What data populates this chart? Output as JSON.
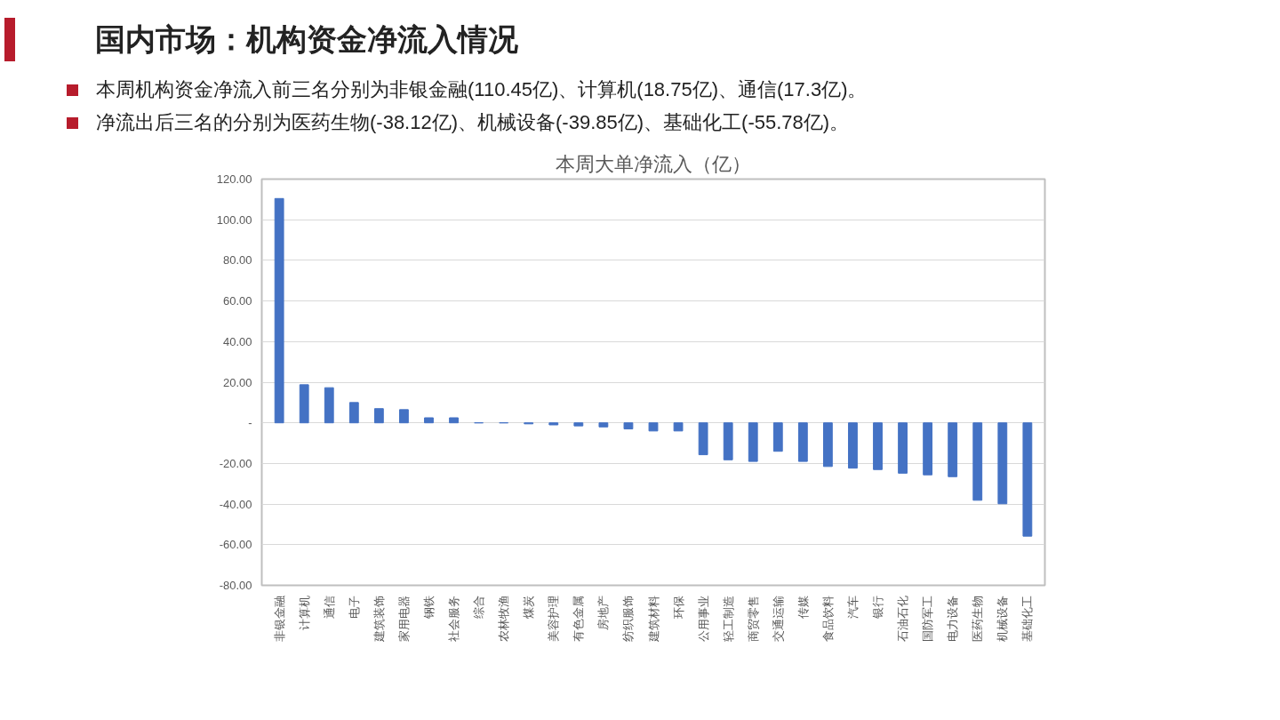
{
  "chart_data": {
    "type": "bar",
    "title": "国内市场：机构资金净流入情况",
    "subtitle": "本周大单净流入（亿）",
    "annotations": [
      "本周机构资金净流入前三名分别为非银金融(110.45亿)、计算机(18.75亿)、通信(17.3亿)。",
      "净流出后三名的分别为医药生物(-38.12亿)、机械设备(-39.85亿)、基础化工(-55.78亿)。"
    ],
    "categories": [
      "非银金融",
      "计算机",
      "通信",
      "电子",
      "建筑装饰",
      "家用电器",
      "钢铁",
      "社会服务",
      "综合",
      "农林牧渔",
      "煤炭",
      "美容护理",
      "有色金属",
      "房地产",
      "纺织服饰",
      "建筑材料",
      "环保",
      "公用事业",
      "轻工制造",
      "商贸零售",
      "交通运输",
      "传媒",
      "食品饮料",
      "汽车",
      "银行",
      "石油石化",
      "国防军工",
      "电力设备",
      "医药生物",
      "机械设备",
      "基础化工"
    ],
    "values": [
      110.45,
      18.75,
      17.3,
      10,
      7,
      6.5,
      2.5,
      2.5,
      0,
      0,
      -0.5,
      -1,
      -1.5,
      -2,
      -3,
      -4,
      -4,
      -15.7,
      -18.2,
      -19,
      -14,
      -19,
      -21.5,
      -22.3,
      -23,
      -24.8,
      -25.6,
      -26.5,
      -38.12,
      -39.85,
      -55.78
    ],
    "color": "#4472c4",
    "ylim": [
      -80,
      120
    ],
    "yticks": [
      {
        "value": -80,
        "label": "-80.00"
      },
      {
        "value": -60,
        "label": "-60.00"
      },
      {
        "value": -40,
        "label": "-40.00"
      },
      {
        "value": -20,
        "label": "-20.00"
      },
      {
        "value": 0,
        "label": "-"
      },
      {
        "value": 20,
        "label": "20.00"
      },
      {
        "value": 40,
        "label": "40.00"
      },
      {
        "value": 60,
        "label": "60.00"
      },
      {
        "value": 80,
        "label": "80.00"
      },
      {
        "value": 100,
        "label": "100.00"
      },
      {
        "value": 120,
        "label": "120.00"
      }
    ],
    "grid": "y"
  }
}
